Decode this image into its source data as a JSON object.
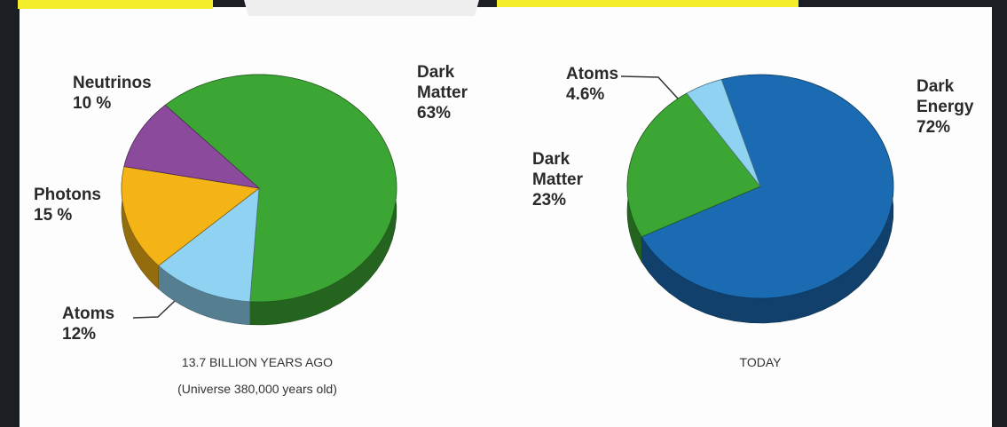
{
  "chart_data": [
    {
      "type": "pie",
      "labels": [
        "Dark Matter",
        "Atoms",
        "Photons",
        "Neutrinos"
      ],
      "values": [
        63,
        12,
        15,
        10
      ],
      "value_labels": [
        "63%",
        "12%",
        "15 %",
        "10 %"
      ],
      "colors": [
        "#3ca634",
        "#8fd2f2",
        "#f5b416",
        "#8b4a9c"
      ],
      "caption": "13.7 BILLION YEARS AGO",
      "subcaption": "(Universe 380,000 years old)"
    },
    {
      "type": "pie",
      "labels": [
        "Dark Energy",
        "Dark Matter",
        "Atoms"
      ],
      "values": [
        72,
        23,
        4.6
      ],
      "value_labels": [
        "72%",
        "23%",
        "4.6%"
      ],
      "colors": [
        "#1a6bb2",
        "#3ca634",
        "#8fd2f2"
      ],
      "caption": "TODAY"
    }
  ]
}
